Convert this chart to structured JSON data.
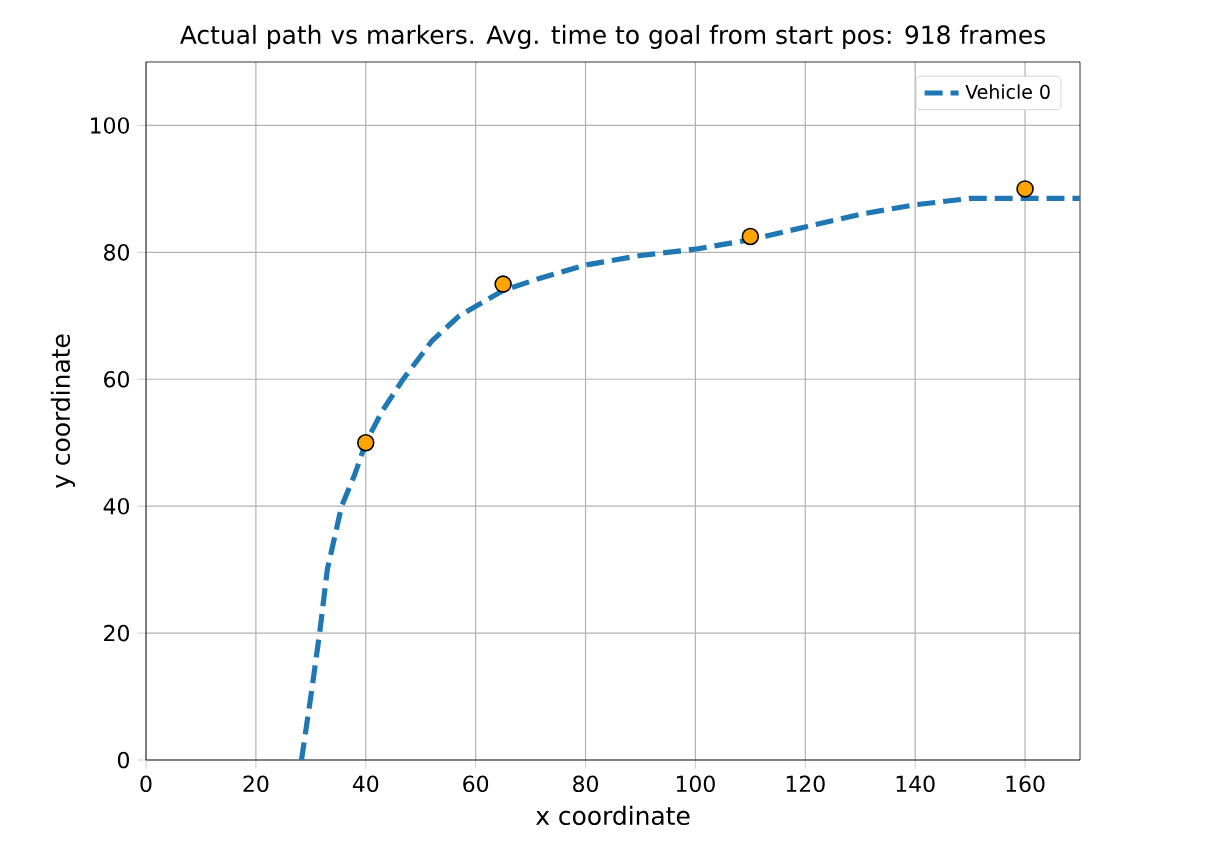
{
  "chart_data": {
    "type": "line",
    "title": "Actual path vs markers. Avg. time to goal from start pos: 918 frames",
    "xlabel": "x coordinate",
    "ylabel": "y coordinate",
    "xlim": [
      0,
      170
    ],
    "ylim": [
      0,
      110
    ],
    "xticks": [
      0,
      20,
      40,
      60,
      80,
      100,
      120,
      140,
      160
    ],
    "yticks": [
      0,
      20,
      40,
      60,
      80,
      100
    ],
    "grid": true,
    "legend": "top right",
    "series": [
      {
        "name": "Vehicle 0",
        "color": "#1f77b4",
        "line_style": "dashed",
        "marker": "none",
        "x": [
          28.3,
          30,
          31.6,
          33,
          35.6,
          38,
          40,
          43,
          46.8,
          52,
          57,
          65,
          72,
          80,
          90,
          100,
          110,
          120,
          130,
          140,
          150,
          160,
          170
        ],
        "values": [
          0,
          10,
          20,
          30,
          40,
          45,
          50,
          55,
          60,
          66,
          70,
          74,
          76,
          78,
          79.5,
          80.5,
          82,
          84,
          86,
          87.5,
          88.5,
          88.5,
          88.5
        ]
      },
      {
        "type": "scatter",
        "color": "#ffa500",
        "marker": "circle",
        "x": [
          40,
          65,
          110,
          160
        ],
        "values": [
          50,
          75,
          82.5,
          90
        ]
      }
    ]
  }
}
